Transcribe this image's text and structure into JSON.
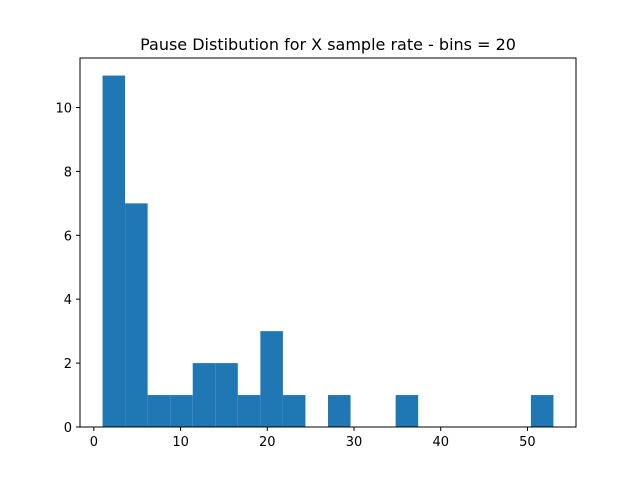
{
  "chart_data": {
    "type": "bar",
    "title": "Pause Distibution for X sample rate - bins = 20",
    "xlabel": "",
    "ylabel": "",
    "bin_edges": [
      1.0,
      3.6,
      6.2,
      8.8,
      11.4,
      14.0,
      16.6,
      19.2,
      21.8,
      24.4,
      27.0,
      29.6,
      32.2,
      34.8,
      37.4,
      40.0,
      42.6,
      45.2,
      47.8,
      50.4,
      53.0
    ],
    "counts": [
      11,
      7,
      1,
      1,
      2,
      2,
      1,
      3,
      1,
      0,
      1,
      0,
      0,
      1,
      0,
      0,
      0,
      0,
      0,
      1
    ],
    "xlim": [
      -1.6,
      55.6
    ],
    "ylim": [
      0,
      11.55
    ],
    "xticks": [
      0,
      10,
      20,
      30,
      40,
      50
    ],
    "yticks": [
      0,
      2,
      4,
      6,
      8,
      10
    ],
    "grid": false,
    "bar_color": "#1f77b4"
  }
}
